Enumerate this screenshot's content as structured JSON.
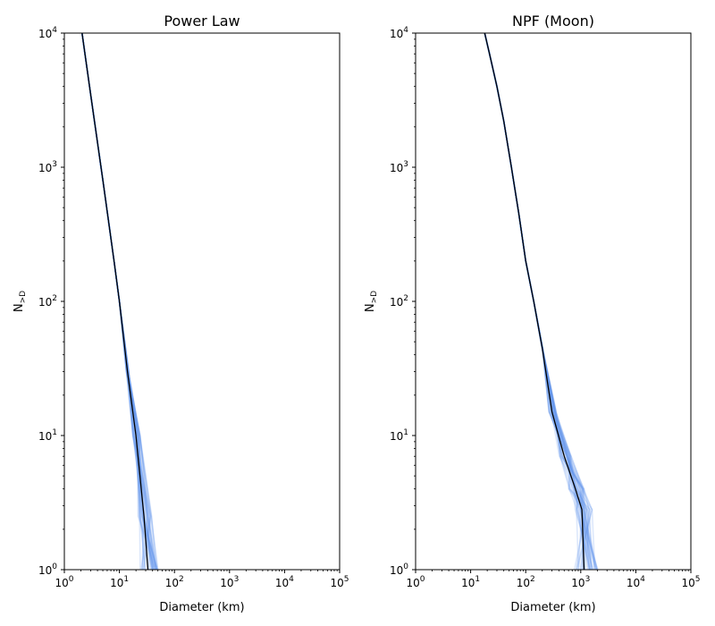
{
  "chart_data": [
    {
      "type": "line",
      "title": "Power Law",
      "xlabel": "Diameter (km)",
      "ylabel": "N",
      "ylabel_sub": ">D",
      "xscale": "log",
      "yscale": "log",
      "xlim": [
        1,
        100000
      ],
      "ylim": [
        1,
        10000
      ],
      "xticks": [
        {
          "base": "10",
          "exp": "0"
        },
        {
          "base": "10",
          "exp": "1"
        },
        {
          "base": "10",
          "exp": "2"
        },
        {
          "base": "10",
          "exp": "3"
        },
        {
          "base": "10",
          "exp": "4"
        },
        {
          "base": "10",
          "exp": "5"
        }
      ],
      "yticks": [
        {
          "base": "10",
          "exp": "0"
        },
        {
          "base": "10",
          "exp": "1"
        },
        {
          "base": "10",
          "exp": "2"
        },
        {
          "base": "10",
          "exp": "3"
        },
        {
          "base": "10",
          "exp": "4"
        }
      ],
      "grid": false,
      "series": [
        {
          "role": "mean",
          "color": "#000000",
          "x": [
            2.1,
            3.0,
            5.0,
            8.0,
            10.0,
            14.0,
            20.0,
            28.0,
            33.0
          ],
          "y": [
            10000,
            3500,
            800,
            200,
            100,
            30,
            10,
            2.5,
            1
          ]
        }
      ],
      "samples": {
        "count": 40,
        "color": "#6495ed",
        "scatter_range": [
          0.8,
          1.3
        ],
        "max_tail_diameter": 220
      }
    },
    {
      "type": "line",
      "title": "NPF (Moon)",
      "xlabel": "Diameter (km)",
      "ylabel": "N",
      "ylabel_sub": ">D",
      "xscale": "log",
      "yscale": "log",
      "xlim": [
        1,
        100000
      ],
      "ylim": [
        1,
        10000
      ],
      "xticks": [
        {
          "base": "10",
          "exp": "0"
        },
        {
          "base": "10",
          "exp": "1"
        },
        {
          "base": "10",
          "exp": "2"
        },
        {
          "base": "10",
          "exp": "3"
        },
        {
          "base": "10",
          "exp": "4"
        },
        {
          "base": "10",
          "exp": "5"
        }
      ],
      "yticks": [
        {
          "base": "10",
          "exp": "0"
        },
        {
          "base": "10",
          "exp": "1"
        },
        {
          "base": "10",
          "exp": "2"
        },
        {
          "base": "10",
          "exp": "3"
        },
        {
          "base": "10",
          "exp": "4"
        }
      ],
      "grid": false,
      "series": [
        {
          "role": "mean",
          "color": "#000000",
          "x": [
            18,
            22,
            30,
            40,
            55,
            75,
            100,
            140,
            200,
            300,
            500,
            800,
            1050,
            1150
          ],
          "y": [
            10000,
            7000,
            4000,
            2200,
            1000,
            450,
            200,
            100,
            45,
            15,
            7,
            4,
            2.8,
            1
          ]
        }
      ],
      "samples": {
        "count": 40,
        "color": "#6495ed",
        "scatter_range": [
          0.75,
          1.45
        ],
        "max_tail_diameter": 3000
      }
    }
  ]
}
